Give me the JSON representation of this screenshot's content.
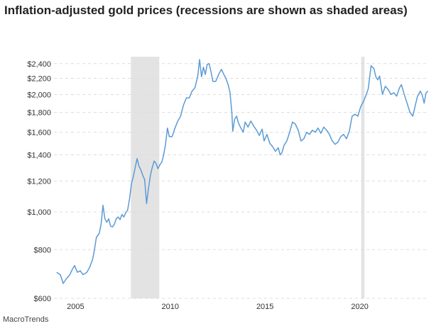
{
  "chart_data": {
    "type": "line",
    "title": "Inflation-adjusted gold prices (recessions are shown as shaded areas)",
    "xlabel": "",
    "ylabel": "",
    "y_scale": "log",
    "xlim": [
      2003.9,
      2023.65
    ],
    "ylim": [
      600,
      2500
    ],
    "x_ticks": [
      2005,
      2010,
      2015,
      2020
    ],
    "x_tick_labels": [
      "2005",
      "2010",
      "2015",
      "2020"
    ],
    "y_ticks": [
      600,
      800,
      1000,
      1200,
      1400,
      1600,
      1800,
      2000,
      2200,
      2400
    ],
    "y_tick_labels": [
      "$600",
      "$800",
      "$1,000",
      "$1,200",
      "$1,400",
      "$1,600",
      "$1,800",
      "$2,000",
      "$2,200",
      "$2,400"
    ],
    "grid": "horizontal dashed",
    "recessions": [
      [
        2007.92,
        2009.42
      ],
      [
        2020.08,
        2020.25
      ]
    ],
    "series": [
      {
        "color": "#5b9bd5",
        "points": [
          [
            2004.0,
            700
          ],
          [
            2004.2,
            690
          ],
          [
            2004.35,
            655
          ],
          [
            2004.5,
            672
          ],
          [
            2004.7,
            690
          ],
          [
            2004.85,
            715
          ],
          [
            2004.95,
            728
          ],
          [
            2005.1,
            700
          ],
          [
            2005.25,
            706
          ],
          [
            2005.4,
            690
          ],
          [
            2005.6,
            700
          ],
          [
            2005.75,
            722
          ],
          [
            2005.9,
            755
          ],
          [
            2006.0,
            800
          ],
          [
            2006.1,
            860
          ],
          [
            2006.25,
            880
          ],
          [
            2006.35,
            930
          ],
          [
            2006.45,
            1040
          ],
          [
            2006.55,
            960
          ],
          [
            2006.65,
            940
          ],
          [
            2006.75,
            960
          ],
          [
            2006.85,
            920
          ],
          [
            2006.95,
            915
          ],
          [
            2007.05,
            930
          ],
          [
            2007.15,
            960
          ],
          [
            2007.25,
            970
          ],
          [
            2007.35,
            955
          ],
          [
            2007.45,
            985
          ],
          [
            2007.55,
            970
          ],
          [
            2007.65,
            995
          ],
          [
            2007.75,
            1010
          ],
          [
            2007.85,
            1080
          ],
          [
            2007.95,
            1180
          ],
          [
            2008.05,
            1230
          ],
          [
            2008.15,
            1300
          ],
          [
            2008.25,
            1370
          ],
          [
            2008.35,
            1310
          ],
          [
            2008.45,
            1280
          ],
          [
            2008.55,
            1240
          ],
          [
            2008.65,
            1210
          ],
          [
            2008.75,
            1050
          ],
          [
            2008.85,
            1150
          ],
          [
            2008.95,
            1240
          ],
          [
            2009.05,
            1300
          ],
          [
            2009.15,
            1350
          ],
          [
            2009.25,
            1330
          ],
          [
            2009.35,
            1290
          ],
          [
            2009.45,
            1320
          ],
          [
            2009.55,
            1340
          ],
          [
            2009.65,
            1400
          ],
          [
            2009.75,
            1490
          ],
          [
            2009.85,
            1640
          ],
          [
            2009.95,
            1560
          ],
          [
            2010.1,
            1560
          ],
          [
            2010.25,
            1640
          ],
          [
            2010.4,
            1710
          ],
          [
            2010.55,
            1760
          ],
          [
            2010.7,
            1880
          ],
          [
            2010.85,
            1960
          ],
          [
            2011.0,
            1960
          ],
          [
            2011.15,
            2040
          ],
          [
            2011.3,
            2080
          ],
          [
            2011.45,
            2230
          ],
          [
            2011.55,
            2460
          ],
          [
            2011.65,
            2220
          ],
          [
            2011.75,
            2350
          ],
          [
            2011.85,
            2250
          ],
          [
            2011.95,
            2390
          ],
          [
            2012.05,
            2400
          ],
          [
            2012.15,
            2290
          ],
          [
            2012.25,
            2160
          ],
          [
            2012.4,
            2160
          ],
          [
            2012.55,
            2250
          ],
          [
            2012.7,
            2320
          ],
          [
            2012.85,
            2240
          ],
          [
            2012.95,
            2190
          ],
          [
            2013.05,
            2120
          ],
          [
            2013.15,
            2030
          ],
          [
            2013.25,
            1800
          ],
          [
            2013.3,
            1610
          ],
          [
            2013.4,
            1730
          ],
          [
            2013.5,
            1760
          ],
          [
            2013.6,
            1690
          ],
          [
            2013.7,
            1650
          ],
          [
            2013.85,
            1600
          ],
          [
            2013.95,
            1700
          ],
          [
            2014.1,
            1650
          ],
          [
            2014.25,
            1710
          ],
          [
            2014.4,
            1660
          ],
          [
            2014.55,
            1620
          ],
          [
            2014.7,
            1570
          ],
          [
            2014.85,
            1630
          ],
          [
            2014.95,
            1520
          ],
          [
            2015.1,
            1580
          ],
          [
            2015.25,
            1500
          ],
          [
            2015.4,
            1470
          ],
          [
            2015.55,
            1430
          ],
          [
            2015.7,
            1460
          ],
          [
            2015.8,
            1400
          ],
          [
            2015.9,
            1420
          ],
          [
            2016.0,
            1480
          ],
          [
            2016.15,
            1520
          ],
          [
            2016.3,
            1600
          ],
          [
            2016.45,
            1700
          ],
          [
            2016.6,
            1680
          ],
          [
            2016.75,
            1620
          ],
          [
            2016.9,
            1520
          ],
          [
            2017.05,
            1540
          ],
          [
            2017.2,
            1600
          ],
          [
            2017.35,
            1580
          ],
          [
            2017.5,
            1620
          ],
          [
            2017.65,
            1600
          ],
          [
            2017.8,
            1640
          ],
          [
            2017.95,
            1590
          ],
          [
            2018.1,
            1650
          ],
          [
            2018.25,
            1620
          ],
          [
            2018.4,
            1580
          ],
          [
            2018.55,
            1520
          ],
          [
            2018.7,
            1490
          ],
          [
            2018.85,
            1510
          ],
          [
            2019.0,
            1560
          ],
          [
            2019.15,
            1580
          ],
          [
            2019.3,
            1540
          ],
          [
            2019.45,
            1610
          ],
          [
            2019.6,
            1760
          ],
          [
            2019.75,
            1780
          ],
          [
            2019.9,
            1760
          ],
          [
            2020.05,
            1860
          ],
          [
            2020.2,
            1920
          ],
          [
            2020.35,
            2000
          ],
          [
            2020.45,
            2070
          ],
          [
            2020.6,
            2370
          ],
          [
            2020.75,
            2330
          ],
          [
            2020.85,
            2220
          ],
          [
            2020.95,
            2180
          ],
          [
            2021.05,
            2230
          ],
          [
            2021.2,
            2000
          ],
          [
            2021.35,
            2100
          ],
          [
            2021.5,
            2060
          ],
          [
            2021.65,
            2000
          ],
          [
            2021.8,
            2020
          ],
          [
            2021.95,
            1980
          ],
          [
            2022.1,
            2080
          ],
          [
            2022.2,
            2120
          ],
          [
            2022.35,
            2000
          ],
          [
            2022.5,
            1900
          ],
          [
            2022.65,
            1800
          ],
          [
            2022.8,
            1760
          ],
          [
            2022.95,
            1890
          ],
          [
            2023.05,
            1980
          ],
          [
            2023.2,
            2040
          ],
          [
            2023.3,
            1990
          ],
          [
            2023.4,
            1900
          ],
          [
            2023.5,
            2020
          ],
          [
            2023.6,
            2040
          ]
        ]
      }
    ]
  },
  "source_label": "MacroTrends"
}
